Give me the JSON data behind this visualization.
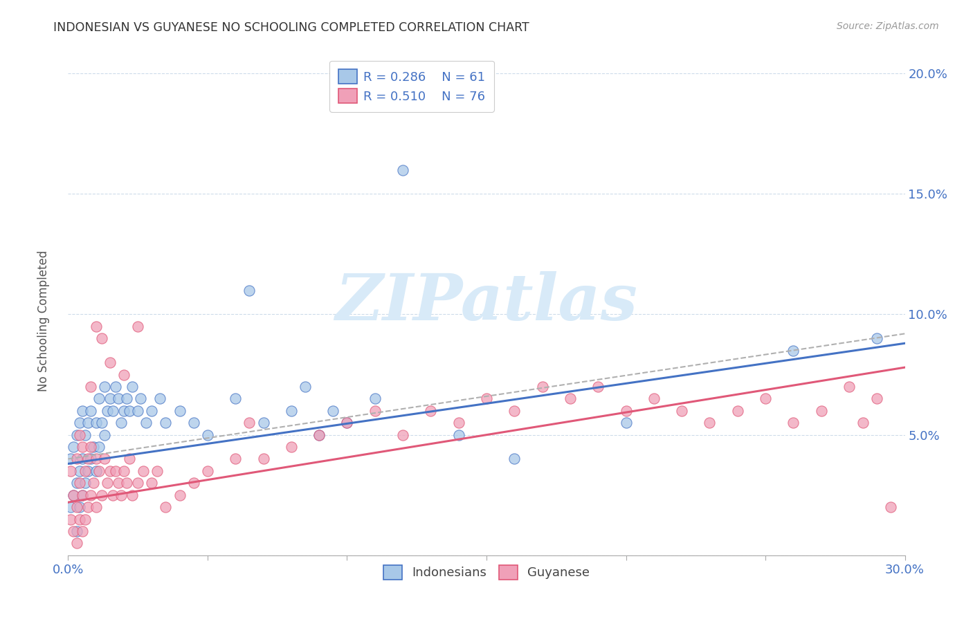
{
  "title": "INDONESIAN VS GUYANESE NO SCHOOLING COMPLETED CORRELATION CHART",
  "source": "Source: ZipAtlas.com",
  "ylabel": "No Schooling Completed",
  "xlim": [
    0.0,
    0.3
  ],
  "ylim": [
    0.0,
    0.21
  ],
  "xticks": [
    0.0,
    0.05,
    0.1,
    0.15,
    0.2,
    0.25,
    0.3
  ],
  "yticks": [
    0.0,
    0.05,
    0.1,
    0.15,
    0.2
  ],
  "ytick_labels": [
    "",
    "5.0%",
    "10.0%",
    "15.0%",
    "20.0%"
  ],
  "xtick_labels_bottom": [
    "0.0%",
    "",
    "",
    "",
    "",
    "",
    "30.0%"
  ],
  "r_indonesian": 0.286,
  "n_indonesian": 61,
  "r_guyanese": 0.51,
  "n_guyanese": 76,
  "indonesian_color": "#a8c8e8",
  "guyanese_color": "#f0a0b8",
  "indonesian_line_color": "#4472c4",
  "guyanese_line_color": "#e05878",
  "dashed_line_color": "#b0b0b0",
  "watermark_color": "#d8eaf8",
  "background_color": "#ffffff",
  "indonesian_x": [
    0.001,
    0.001,
    0.002,
    0.002,
    0.003,
    0.003,
    0.003,
    0.004,
    0.004,
    0.004,
    0.005,
    0.005,
    0.005,
    0.006,
    0.006,
    0.007,
    0.007,
    0.008,
    0.008,
    0.009,
    0.01,
    0.01,
    0.011,
    0.011,
    0.012,
    0.013,
    0.013,
    0.014,
    0.015,
    0.016,
    0.017,
    0.018,
    0.019,
    0.02,
    0.021,
    0.022,
    0.023,
    0.025,
    0.026,
    0.028,
    0.03,
    0.033,
    0.035,
    0.04,
    0.045,
    0.05,
    0.06,
    0.065,
    0.07,
    0.08,
    0.085,
    0.09,
    0.095,
    0.1,
    0.11,
    0.12,
    0.14,
    0.16,
    0.2,
    0.26,
    0.29
  ],
  "indonesian_y": [
    0.02,
    0.04,
    0.025,
    0.045,
    0.01,
    0.03,
    0.05,
    0.02,
    0.035,
    0.055,
    0.025,
    0.04,
    0.06,
    0.03,
    0.05,
    0.035,
    0.055,
    0.04,
    0.06,
    0.045,
    0.035,
    0.055,
    0.045,
    0.065,
    0.055,
    0.05,
    0.07,
    0.06,
    0.065,
    0.06,
    0.07,
    0.065,
    0.055,
    0.06,
    0.065,
    0.06,
    0.07,
    0.06,
    0.065,
    0.055,
    0.06,
    0.065,
    0.055,
    0.06,
    0.055,
    0.05,
    0.065,
    0.11,
    0.055,
    0.06,
    0.07,
    0.05,
    0.06,
    0.055,
    0.065,
    0.16,
    0.05,
    0.04,
    0.055,
    0.085,
    0.09
  ],
  "guyanese_x": [
    0.001,
    0.001,
    0.002,
    0.002,
    0.003,
    0.003,
    0.003,
    0.004,
    0.004,
    0.004,
    0.005,
    0.005,
    0.005,
    0.006,
    0.006,
    0.007,
    0.007,
    0.008,
    0.008,
    0.009,
    0.01,
    0.01,
    0.011,
    0.012,
    0.013,
    0.014,
    0.015,
    0.016,
    0.017,
    0.018,
    0.019,
    0.02,
    0.021,
    0.022,
    0.023,
    0.025,
    0.027,
    0.03,
    0.032,
    0.035,
    0.04,
    0.045,
    0.05,
    0.06,
    0.065,
    0.07,
    0.08,
    0.09,
    0.1,
    0.11,
    0.12,
    0.13,
    0.14,
    0.15,
    0.16,
    0.17,
    0.18,
    0.19,
    0.2,
    0.21,
    0.22,
    0.23,
    0.24,
    0.25,
    0.26,
    0.27,
    0.28,
    0.285,
    0.29,
    0.295,
    0.01,
    0.012,
    0.015,
    0.008,
    0.02,
    0.025
  ],
  "guyanese_y": [
    0.015,
    0.035,
    0.01,
    0.025,
    0.005,
    0.02,
    0.04,
    0.015,
    0.03,
    0.05,
    0.01,
    0.025,
    0.045,
    0.015,
    0.035,
    0.02,
    0.04,
    0.025,
    0.045,
    0.03,
    0.02,
    0.04,
    0.035,
    0.025,
    0.04,
    0.03,
    0.035,
    0.025,
    0.035,
    0.03,
    0.025,
    0.035,
    0.03,
    0.04,
    0.025,
    0.03,
    0.035,
    0.03,
    0.035,
    0.02,
    0.025,
    0.03,
    0.035,
    0.04,
    0.055,
    0.04,
    0.045,
    0.05,
    0.055,
    0.06,
    0.05,
    0.06,
    0.055,
    0.065,
    0.06,
    0.07,
    0.065,
    0.07,
    0.06,
    0.065,
    0.06,
    0.055,
    0.06,
    0.065,
    0.055,
    0.06,
    0.07,
    0.055,
    0.065,
    0.02,
    0.095,
    0.09,
    0.08,
    0.07,
    0.075,
    0.095
  ]
}
